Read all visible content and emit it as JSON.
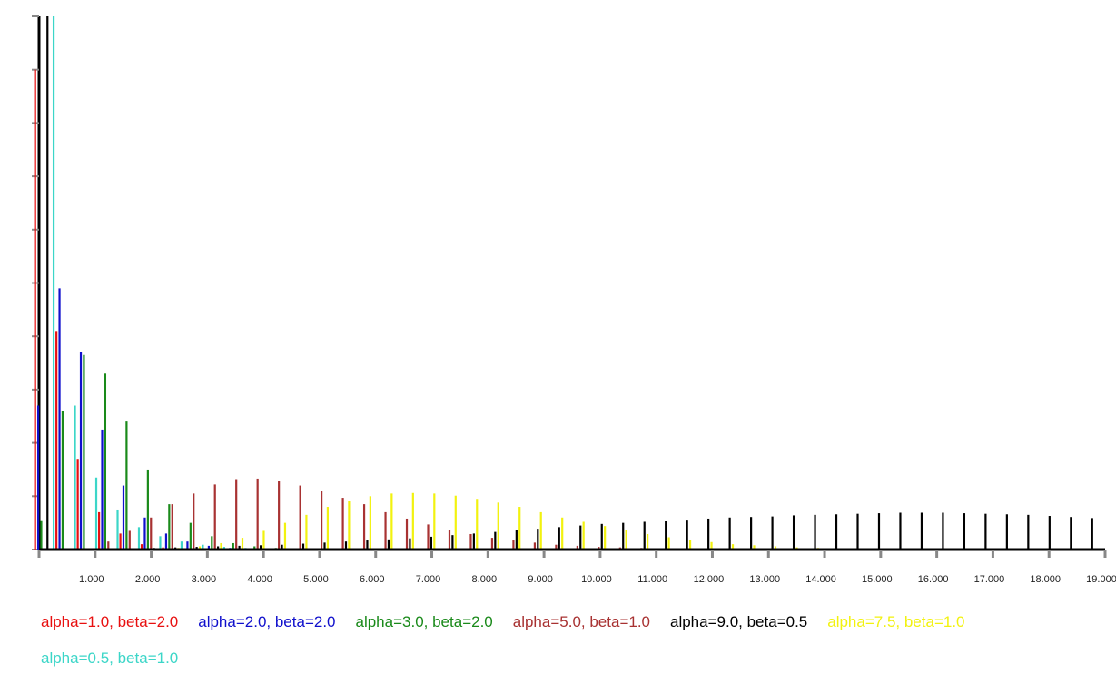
{
  "chart_data": {
    "type": "bar",
    "title": "",
    "xlabel": "",
    "ylabel": "",
    "x_tick_labels": [
      "1.000",
      "2.000",
      "3.000",
      "4.000",
      "5.000",
      "6.000",
      "7.000",
      "8.000",
      "9.000",
      "10.000",
      "11.000",
      "12.000",
      "13.000",
      "14.000",
      "15.000",
      "16.000",
      "17.000",
      "18.000",
      "19.000"
    ],
    "x": [
      0.1,
      0.5,
      0.9,
      1.3,
      1.7,
      2.1,
      2.5,
      2.9,
      3.3,
      3.7,
      4.1,
      4.5,
      4.9,
      5.3,
      5.7,
      6.1,
      6.5,
      6.9,
      7.3,
      7.7,
      8.1,
      8.5,
      8.9,
      9.3,
      9.7,
      10.1,
      10.5,
      10.9,
      11.3,
      11.7,
      12.1,
      12.5,
      12.9,
      13.3,
      13.7,
      14.1,
      14.5,
      14.9,
      15.3,
      15.7,
      16.1,
      16.5,
      16.9,
      17.3,
      17.7,
      18.1,
      18.5,
      18.9,
      19.3,
      19.7
    ],
    "xlim": [
      0,
      20
    ],
    "ylim": [
      0,
      1.0
    ],
    "y_ticks": 10,
    "grid": false,
    "legend_placement": "bottom",
    "series": [
      {
        "name": "alpha=1.0, beta=2.0",
        "color": "#e81010",
        "values": [
          0.9,
          0.41,
          0.17,
          0.07,
          0.03,
          0.01,
          0.004,
          0.002,
          0.001,
          0,
          0,
          0,
          0,
          0,
          0,
          0,
          0,
          0,
          0,
          0,
          0,
          0,
          0,
          0,
          0,
          0,
          0,
          0,
          0,
          0,
          0,
          0,
          0,
          0,
          0,
          0,
          0,
          0,
          0,
          0,
          0,
          0,
          0,
          0,
          0,
          0,
          0,
          0,
          0,
          0
        ]
      },
      {
        "name": "alpha=2.0, beta=2.0",
        "color": "#1010cc",
        "values": [
          0.27,
          0.49,
          0.37,
          0.225,
          0.12,
          0.06,
          0.03,
          0.015,
          0.007,
          0.003,
          0.001,
          0,
          0,
          0,
          0,
          0,
          0,
          0,
          0,
          0,
          0,
          0,
          0,
          0,
          0,
          0,
          0,
          0,
          0,
          0,
          0,
          0,
          0,
          0,
          0,
          0,
          0,
          0,
          0,
          0,
          0,
          0,
          0,
          0,
          0,
          0,
          0,
          0,
          0,
          0
        ]
      },
      {
        "name": "alpha=3.0, beta=2.0",
        "color": "#1a8a1a",
        "values": [
          0.055,
          0.26,
          0.365,
          0.33,
          0.24,
          0.15,
          0.085,
          0.05,
          0.025,
          0.012,
          0.006,
          0.003,
          0.001,
          0,
          0,
          0,
          0,
          0,
          0,
          0,
          0,
          0,
          0,
          0,
          0,
          0,
          0,
          0,
          0,
          0,
          0,
          0,
          0,
          0,
          0,
          0,
          0,
          0,
          0,
          0,
          0,
          0,
          0,
          0,
          0,
          0,
          0,
          0,
          0,
          0
        ]
      },
      {
        "name": "alpha=5.0, beta=1.0",
        "color": "#a83232",
        "values": [
          0,
          0,
          0.001,
          0.015,
          0.035,
          0.06,
          0.085,
          0.105,
          0.122,
          0.132,
          0.133,
          0.128,
          0.12,
          0.11,
          0.097,
          0.085,
          0.07,
          0.058,
          0.047,
          0.036,
          0.029,
          0.022,
          0.017,
          0.013,
          0.009,
          0.007,
          0.005,
          0.004,
          0.003,
          0.002,
          0.001,
          0,
          0,
          0,
          0,
          0,
          0,
          0,
          0,
          0,
          0,
          0,
          0,
          0,
          0,
          0,
          0,
          0,
          0,
          0
        ]
      },
      {
        "name": "alpha=9.0, beta=0.5",
        "color": "#000000",
        "values": [
          1.0,
          0,
          0,
          0.001,
          0.002,
          0.003,
          0.004,
          0.005,
          0.006,
          0.007,
          0.008,
          0.009,
          0.011,
          0.013,
          0.015,
          0.017,
          0.019,
          0.021,
          0.024,
          0.027,
          0.03,
          0.033,
          0.036,
          0.039,
          0.042,
          0.045,
          0.048,
          0.05,
          0.052,
          0.054,
          0.056,
          0.058,
          0.06,
          0.061,
          0.062,
          0.064,
          0.065,
          0.066,
          0.067,
          0.068,
          0.069,
          0.069,
          0.069,
          0.068,
          0.067,
          0.066,
          0.065,
          0.063,
          0.061,
          0.059
        ]
      },
      {
        "name": "alpha=7.5, beta=1.0",
        "color": "#f2f20f",
        "values": [
          0,
          0,
          0,
          0,
          0,
          0.001,
          0.003,
          0.006,
          0.012,
          0.022,
          0.035,
          0.05,
          0.065,
          0.08,
          0.092,
          0.1,
          0.105,
          0.106,
          0.105,
          0.101,
          0.095,
          0.088,
          0.08,
          0.07,
          0.06,
          0.052,
          0.044,
          0.036,
          0.029,
          0.023,
          0.018,
          0.014,
          0.01,
          0.008,
          0.006,
          0.004,
          0.003,
          0.002,
          0.001,
          0.001,
          0,
          0,
          0,
          0,
          0,
          0,
          0,
          0,
          0,
          0
        ]
      },
      {
        "name": "alpha=0.5, beta=1.0",
        "color": "#3cd6c8",
        "values": [
          1.0,
          0.27,
          0.135,
          0.075,
          0.042,
          0.025,
          0.015,
          0.009,
          0.005,
          0.003,
          0.002,
          0.001,
          0,
          0,
          0,
          0,
          0,
          0,
          0,
          0,
          0,
          0,
          0,
          0,
          0,
          0,
          0,
          0,
          0,
          0,
          0,
          0,
          0,
          0,
          0,
          0,
          0,
          0,
          0,
          0,
          0,
          0,
          0,
          0,
          0,
          0,
          0,
          0,
          0,
          0
        ]
      }
    ]
  }
}
